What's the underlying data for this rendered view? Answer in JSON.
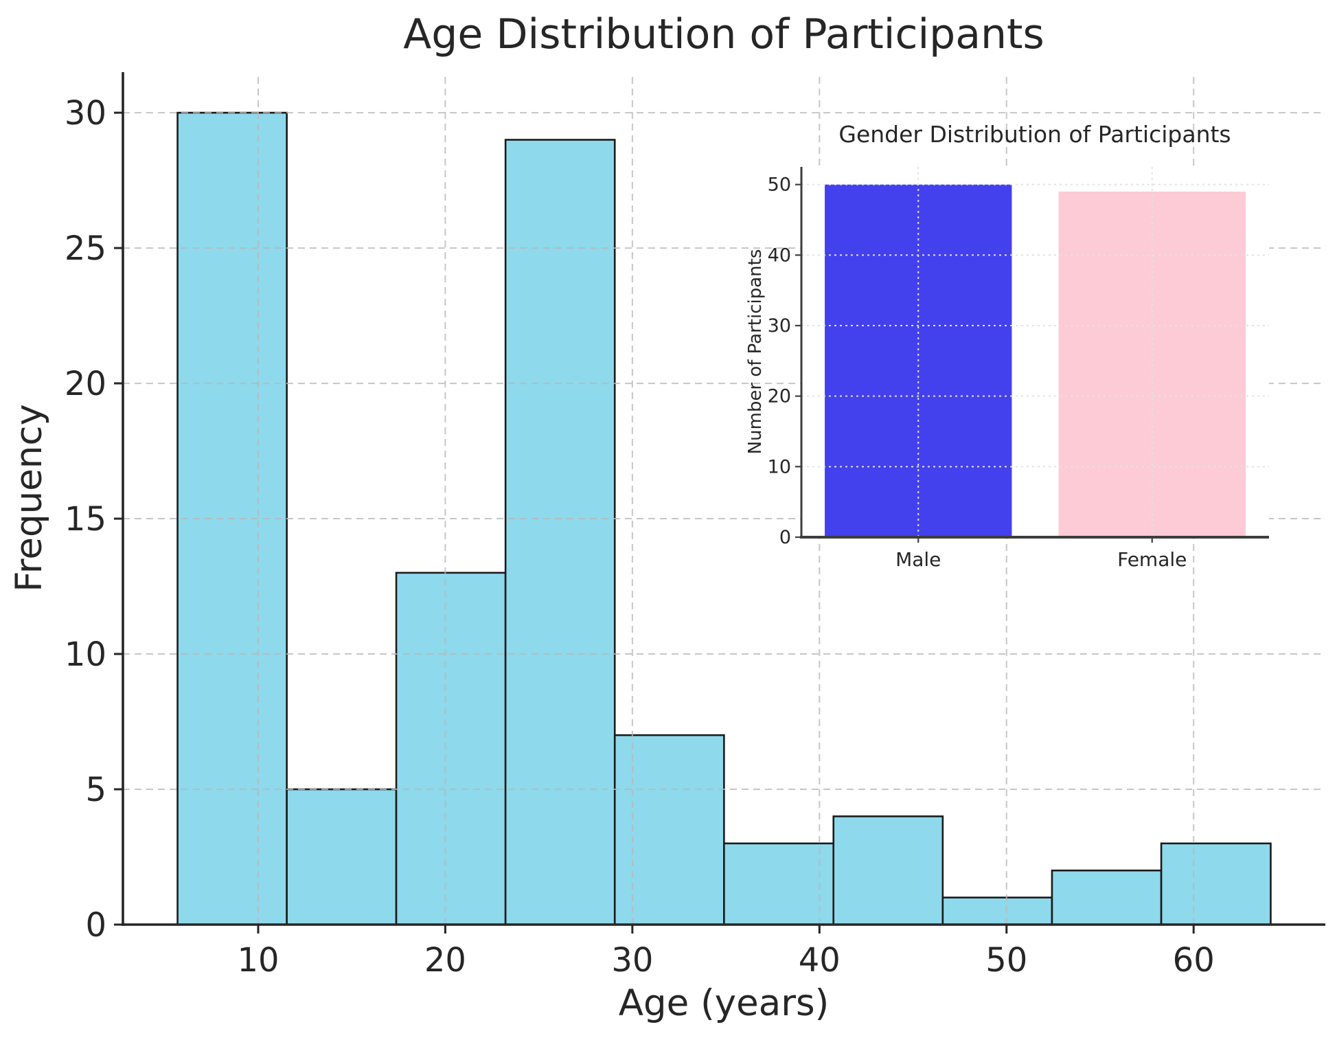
{
  "figure": {
    "background": "#ffffff",
    "text_color": "#262626",
    "spine_color_main": "#262626",
    "spine_color_inset": "#3d3d3d",
    "grid_color_main": "#b9b9b9",
    "grid_color_inset": "#e2e2e2"
  },
  "chart_data": [
    {
      "type": "bar",
      "subtype": "histogram",
      "title": "Age Distribution of Participants",
      "xlabel": "Age (years)",
      "ylabel": "Frequency",
      "bin_edges": [
        5.69,
        11.53,
        17.38,
        23.22,
        29.06,
        34.9,
        40.75,
        46.59,
        52.43,
        58.27,
        64.12
      ],
      "values": [
        30,
        5,
        13,
        29,
        7,
        3,
        4,
        1,
        2,
        3
      ],
      "xticks": [
        10,
        20,
        30,
        40,
        50,
        60
      ],
      "yticks": [
        0,
        5,
        10,
        15,
        20,
        25,
        30
      ],
      "xlim": [
        2.77,
        67.04
      ],
      "ylim": [
        0,
        31.5
      ],
      "grid": true,
      "grid_style": "dashed",
      "legend": "none",
      "bar_color": "#8ED9EB",
      "bar_edge_color": "#1b1b1b"
    },
    {
      "type": "bar",
      "title": "Gender Distribution of Participants",
      "xlabel": "",
      "ylabel": "Number of Participants",
      "categories": [
        "Male",
        "Female"
      ],
      "values": [
        50,
        49
      ],
      "bar_colors": [
        "#4340ED",
        "#FCCBD5"
      ],
      "yticks": [
        0,
        10,
        20,
        30,
        40,
        50
      ],
      "xlim": [
        -0.5,
        1.5
      ],
      "ylim": [
        0,
        52.5
      ],
      "grid": true,
      "grid_style": "dotted",
      "legend": "none"
    }
  ]
}
